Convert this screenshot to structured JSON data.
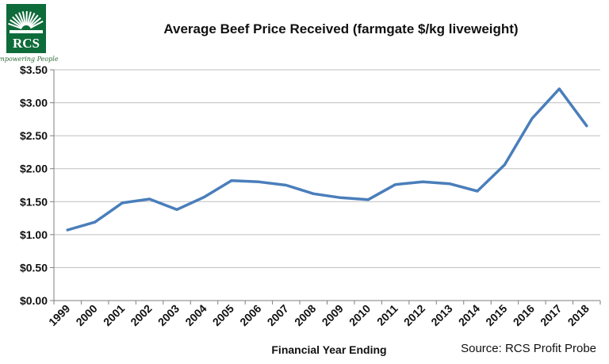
{
  "logo": {
    "text": "RCS",
    "tagline": "Empowering People",
    "color": "#0e6b3a"
  },
  "chart_data": {
    "type": "line",
    "title": "Average Beef Price Received (farmgate $/kg liveweight)",
    "xlabel": "Financial Year Ending",
    "ylabel": "",
    "source_note": "Source: RCS Profit Probe",
    "ylim": [
      0,
      3.5
    ],
    "y_ticks": [
      "$0.00",
      "$0.50",
      "$1.00",
      "$1.50",
      "$2.00",
      "$2.50",
      "$3.00",
      "$3.50"
    ],
    "grid": true,
    "categories": [
      "1999",
      "2000",
      "2001",
      "2002",
      "2003",
      "2004",
      "2005",
      "2006",
      "2007",
      "2008",
      "2009",
      "2010",
      "2011",
      "2012",
      "2013",
      "2014",
      "2015",
      "2016",
      "2017",
      "2018"
    ],
    "series": [
      {
        "values": [
          1.07,
          1.19,
          1.48,
          1.54,
          1.38,
          1.57,
          1.82,
          1.8,
          1.75,
          1.62,
          1.56,
          1.53,
          1.76,
          1.8,
          1.77,
          1.66,
          2.06,
          2.76,
          3.21,
          2.65
        ],
        "color": "#4a7ebb"
      }
    ]
  }
}
